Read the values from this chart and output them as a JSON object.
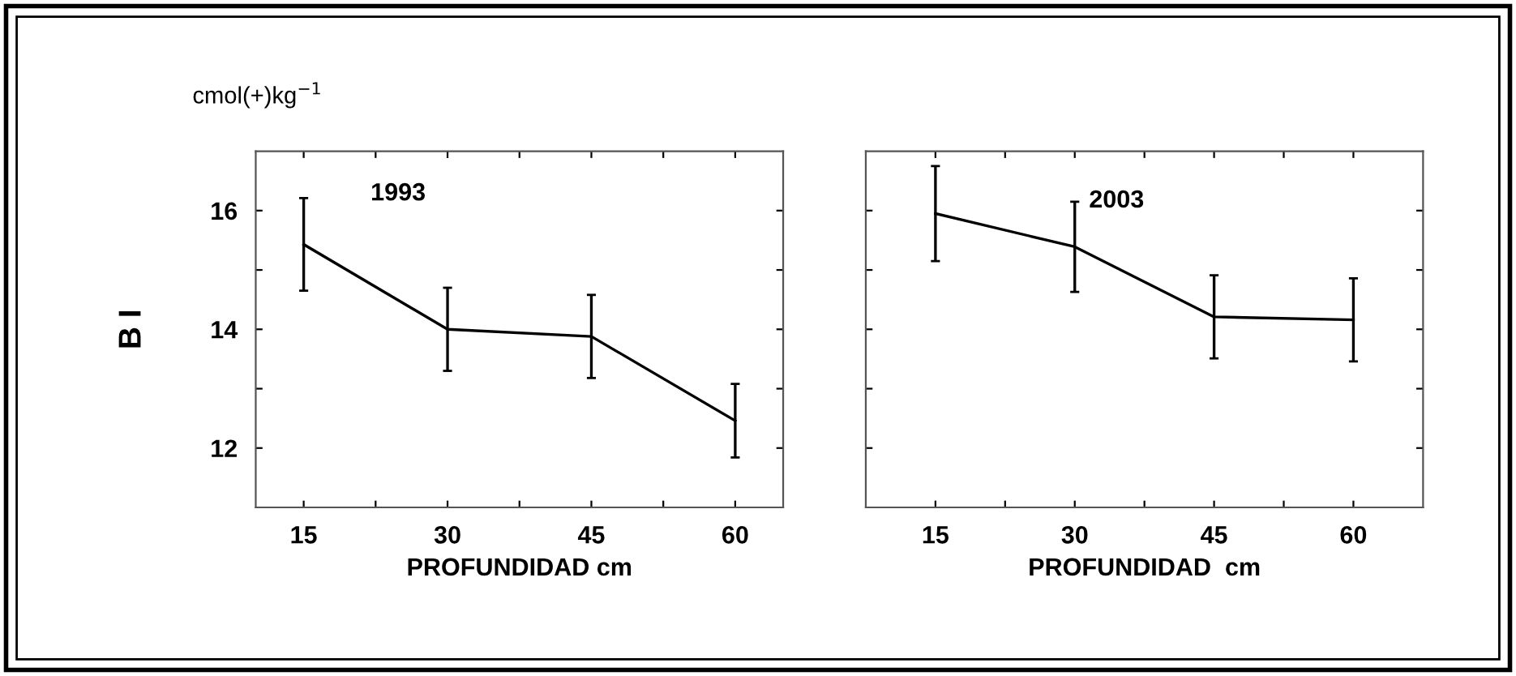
{
  "chart_data": [
    {
      "type": "line",
      "title": "1993",
      "ylabel": "B I",
      "xlabel": "PROFUNDIDAD cm",
      "annotations": [
        "cmol(+)kg$^{−1}$"
      ],
      "x": [
        15,
        30,
        45,
        60
      ],
      "series": [
        {
          "color": "#000000",
          "values": [
            15.43,
            14.0,
            13.88,
            12.46
          ],
          "errors": [
            0.78,
            0.7,
            0.7,
            0.62
          ]
        }
      ],
      "xlim": [
        10,
        65
      ],
      "xticks": [
        15,
        {
          "value": 22.5,
          "label": null
        },
        30,
        {
          "value": 37.5,
          "label": null
        },
        45,
        {
          "value": 52.5,
          "label": null
        },
        60
      ],
      "ylim": [
        11,
        17
      ],
      "yticks": [
        12,
        {
          "value": 13,
          "label": null
        },
        14,
        {
          "value": 15,
          "label": null
        },
        16
      ],
      "grid": false,
      "legend": false,
      "marker": "none",
      "line_style": "solid"
    },
    {
      "type": "line",
      "title": "2003",
      "xlabel": "PROFUNDIDAD  cm",
      "x": [
        15,
        30,
        45,
        60
      ],
      "series": [
        {
          "color": "#000000",
          "values": [
            15.95,
            15.39,
            14.21,
            14.16
          ],
          "errors": [
            0.8,
            0.76,
            0.7,
            0.7
          ]
        }
      ],
      "xlim": [
        7.5,
        67.5
      ],
      "xticks": [
        15,
        {
          "value": 22.5,
          "label": null
        },
        30,
        {
          "value": 37.5,
          "label": null
        },
        45,
        {
          "value": 52.5,
          "label": null
        },
        60
      ],
      "ylim": [
        11,
        17
      ],
      "yticks": [
        {
          "value": 12,
          "label": null
        },
        {
          "value": 13,
          "label": null
        },
        {
          "value": 14,
          "label": null
        },
        {
          "value": 15,
          "label": null
        },
        {
          "value": 16,
          "label": null
        }
      ],
      "tick_labels": "x",
      "grid": false,
      "legend": false,
      "marker": "none",
      "line_style": "solid"
    }
  ]
}
